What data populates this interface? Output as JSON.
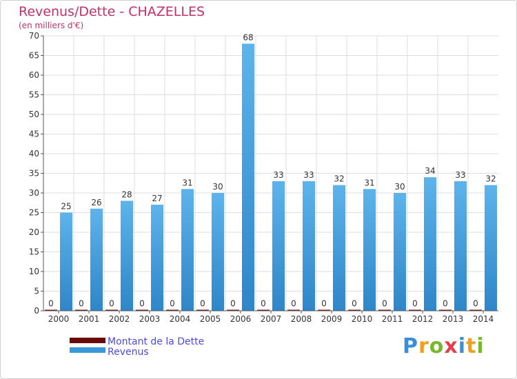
{
  "colors": {
    "revenus": "#3a9ad9",
    "revenus_light": "#5db3ea",
    "dette": "#6b0a0a",
    "title": "#c0306a",
    "legend_text": "#4a4adf",
    "grid": "#dddddd"
  },
  "chart_data": {
    "type": "bar",
    "title": "Revenus/Dette - CHAZELLES",
    "subtitle": "(en milliers d'€)",
    "xlabel": "",
    "ylabel": "",
    "ylim": [
      0,
      70
    ],
    "yticks": [
      0,
      5,
      10,
      15,
      20,
      25,
      30,
      35,
      40,
      45,
      50,
      55,
      60,
      65,
      70
    ],
    "grid": true,
    "legend_position": "bottom-left",
    "categories": [
      "2000",
      "2001",
      "2002",
      "2003",
      "2004",
      "2005",
      "2006",
      "2007",
      "2008",
      "2009",
      "2010",
      "2011",
      "2012",
      "2013",
      "2014"
    ],
    "series": [
      {
        "name": "Montant de la Dette",
        "color": "#6b0a0a",
        "values": [
          0,
          0,
          0,
          0,
          0,
          0,
          0,
          0,
          0,
          0,
          0,
          0,
          0,
          0,
          0
        ]
      },
      {
        "name": "Revenus",
        "color": "#3a9ad9",
        "values": [
          25,
          26,
          28,
          27,
          31,
          30,
          68,
          33,
          33,
          32,
          31,
          30,
          34,
          33,
          32
        ]
      }
    ]
  },
  "logo": {
    "letters": [
      {
        "ch": "P",
        "color": "#3a8fd6"
      },
      {
        "ch": "r",
        "color": "#f0a020"
      },
      {
        "ch": "o",
        "color": "#79b72f"
      },
      {
        "ch": "x",
        "color": "#e2404a"
      },
      {
        "ch": "i",
        "color": "#3a8fd6"
      },
      {
        "ch": "t",
        "color": "#f0a020"
      },
      {
        "ch": "i",
        "color": "#79b72f"
      }
    ]
  }
}
